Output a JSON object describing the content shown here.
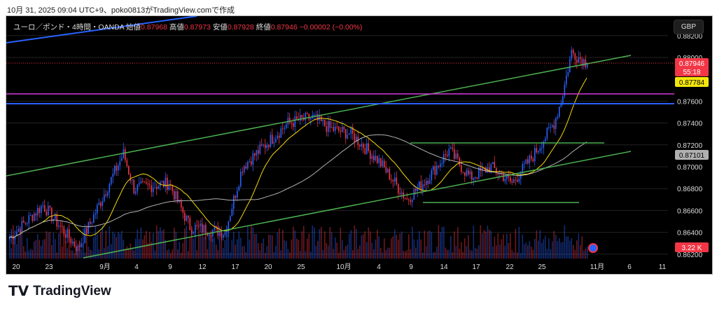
{
  "caption": "10月 31, 2025 09:04 UTC+9、poko0813がTradingView.comで作成",
  "legend": {
    "symbol": "ユーロ／ポンド・4時間・OANDA",
    "open_label": "始値",
    "open": "0.87968",
    "high_label": "高値",
    "high": "0.87973",
    "low_label": "安値",
    "low": "0.87928",
    "close_label": "終値",
    "close": "0.87946",
    "change": "−0.00002 (−0.00%)"
  },
  "currency_button": "GBP",
  "price_axis": {
    "ticks": [
      "0.88200",
      "0.88000",
      "0.87600",
      "0.87400",
      "0.87200",
      "0.87000",
      "0.86800",
      "0.86600",
      "0.86400",
      "0.86200"
    ],
    "badges": {
      "last_price": "0.87946",
      "countdown": "55:18",
      "ma_fast": "0.87784",
      "ma_slow": "0.87101",
      "volume": "3.22 K"
    }
  },
  "time_axis": [
    "20",
    "23",
    "9月",
    "4",
    "9",
    "12",
    "17",
    "20",
    "25",
    "10月",
    "4",
    "9",
    "14",
    "17",
    "22",
    "25",
    "11月",
    "6",
    "11"
  ],
  "colors": {
    "up": "#2962ff",
    "down": "#f23645",
    "ma_fast": "#f5d90a",
    "ma_slow": "#b0b0b0",
    "channel": "#4caf50",
    "magenta": "#d23adb",
    "blue": "#2962ff"
  },
  "chart_data": {
    "type": "candlestick",
    "price_path": [
      [
        0,
        0.8635
      ],
      [
        19,
        0.8665
      ],
      [
        39,
        0.8625
      ],
      [
        65,
        0.8712
      ],
      [
        71,
        0.868
      ],
      [
        91,
        0.8685
      ],
      [
        103,
        0.8645
      ],
      [
        123,
        0.864
      ],
      [
        133,
        0.87
      ],
      [
        159,
        0.874
      ],
      [
        173,
        0.8745
      ],
      [
        183,
        0.8735
      ],
      [
        195,
        0.873
      ],
      [
        211,
        0.8705
      ],
      [
        227,
        0.867
      ],
      [
        239,
        0.869
      ],
      [
        251,
        0.8715
      ],
      [
        263,
        0.869
      ],
      [
        275,
        0.87
      ],
      [
        287,
        0.8685
      ],
      [
        299,
        0.871
      ],
      [
        311,
        0.874
      ],
      [
        315,
        0.876
      ],
      [
        321,
        0.8805
      ],
      [
        330,
        0.87946
      ]
    ],
    "ylim": [
      0.8618,
      0.8826
    ]
  },
  "brand": "TradingView"
}
